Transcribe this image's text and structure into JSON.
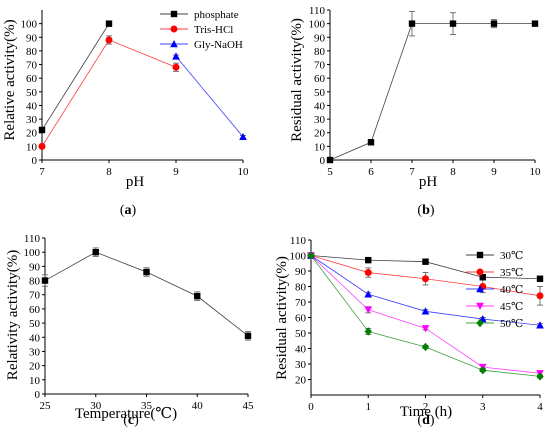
{
  "chart_data": [
    {
      "id": "a",
      "type": "line",
      "panel_label": "(a)",
      "xlabel": "pH",
      "ylabel": "Relative activity(%)",
      "xlim": [
        7,
        10
      ],
      "ylim": [
        0,
        110
      ],
      "xticks": [
        7,
        8,
        9,
        10
      ],
      "yticks": [
        0,
        10,
        20,
        30,
        40,
        50,
        60,
        70,
        80,
        90,
        100
      ],
      "legend_position": "top-right",
      "series": [
        {
          "name": "phosphate",
          "color": "#000000",
          "marker": "square",
          "points": [
            {
              "x": 7,
              "y": 22,
              "err": 2
            },
            {
              "x": 8,
              "y": 100,
              "err": 2
            }
          ]
        },
        {
          "name": "Tris-HCl",
          "color": "#ff0000",
          "marker": "circle",
          "points": [
            {
              "x": 7,
              "y": 10,
              "err": 1
            },
            {
              "x": 8,
              "y": 88,
              "err": 3
            },
            {
              "x": 9,
              "y": 68,
              "err": 3
            }
          ]
        },
        {
          "name": "Gly-NaOH",
          "color": "#0000ff",
          "marker": "triangle",
          "points": [
            {
              "x": 9,
              "y": 76,
              "err": 1
            },
            {
              "x": 10,
              "y": 17,
              "err": 1
            }
          ]
        }
      ]
    },
    {
      "id": "b",
      "type": "line",
      "panel_label": "(b)",
      "xlabel": "pH",
      "ylabel": "Residual activity(%)",
      "xlim": [
        5,
        10
      ],
      "ylim": [
        0,
        110
      ],
      "xticks": [
        5,
        6,
        7,
        8,
        9,
        10
      ],
      "yticks": [
        0,
        10,
        20,
        30,
        40,
        50,
        60,
        70,
        80,
        90,
        100,
        110
      ],
      "series": [
        {
          "name": "",
          "color": "#000000",
          "marker": "square",
          "points": [
            {
              "x": 5,
              "y": 0,
              "err": 0
            },
            {
              "x": 6,
              "y": 13,
              "err": 2
            },
            {
              "x": 7,
              "y": 100,
              "err": 9
            },
            {
              "x": 8,
              "y": 100,
              "err": 8
            },
            {
              "x": 9,
              "y": 100,
              "err": 3
            },
            {
              "x": 10,
              "y": 100,
              "err": 1
            }
          ]
        }
      ]
    },
    {
      "id": "c",
      "type": "line",
      "panel_label": "(c)",
      "xlabel": "Temperature(℃)",
      "ylabel": "Relativity activity(%)",
      "xlim": [
        25,
        45
      ],
      "ylim": [
        0,
        110
      ],
      "xticks": [
        25,
        30,
        35,
        40,
        45
      ],
      "yticks": [
        0,
        10,
        20,
        30,
        40,
        50,
        60,
        70,
        80,
        90,
        100,
        110
      ],
      "series": [
        {
          "name": "",
          "color": "#000000",
          "marker": "square",
          "points": [
            {
              "x": 25,
              "y": 80,
              "err": 4
            },
            {
              "x": 30,
              "y": 100,
              "err": 3
            },
            {
              "x": 35,
              "y": 86,
              "err": 3
            },
            {
              "x": 40,
              "y": 69,
              "err": 3
            },
            {
              "x": 45,
              "y": 41,
              "err": 3
            }
          ]
        }
      ]
    },
    {
      "id": "d",
      "type": "line",
      "panel_label": "(d)",
      "xlabel": "Time (h)",
      "ylabel": "Residual activity(%)",
      "xlim": [
        0,
        4
      ],
      "ylim": [
        10,
        110
      ],
      "xticks": [
        0,
        1,
        2,
        3,
        4
      ],
      "yticks": [
        20,
        30,
        40,
        50,
        60,
        70,
        80,
        90,
        100,
        110
      ],
      "legend_position": "top-right",
      "series": [
        {
          "name": "30℃",
          "color": "#000000",
          "marker": "square",
          "points": [
            {
              "x": 0,
              "y": 100,
              "err": 0
            },
            {
              "x": 1,
              "y": 97,
              "err": 1
            },
            {
              "x": 2,
              "y": 96,
              "err": 1
            },
            {
              "x": 3,
              "y": 86,
              "err": 1
            },
            {
              "x": 4,
              "y": 85,
              "err": 1
            }
          ]
        },
        {
          "name": "35℃",
          "color": "#ff0000",
          "marker": "circle",
          "points": [
            {
              "x": 0,
              "y": 100,
              "err": 0
            },
            {
              "x": 1,
              "y": 89,
              "err": 3
            },
            {
              "x": 2,
              "y": 85,
              "err": 4
            },
            {
              "x": 3,
              "y": 80,
              "err": 4
            },
            {
              "x": 4,
              "y": 74,
              "err": 6
            }
          ]
        },
        {
          "name": "40℃",
          "color": "#0000ff",
          "marker": "triangle",
          "points": [
            {
              "x": 0,
              "y": 100,
              "err": 0
            },
            {
              "x": 1,
              "y": 75,
              "err": 1
            },
            {
              "x": 2,
              "y": 64,
              "err": 1
            },
            {
              "x": 3,
              "y": 59,
              "err": 1
            },
            {
              "x": 4,
              "y": 55,
              "err": 1
            }
          ]
        },
        {
          "name": "45℃",
          "color": "#ff00ff",
          "marker": "triangle-down",
          "points": [
            {
              "x": 0,
              "y": 100,
              "err": 0
            },
            {
              "x": 1,
              "y": 65,
              "err": 2
            },
            {
              "x": 2,
              "y": 53,
              "err": 1
            },
            {
              "x": 3,
              "y": 28,
              "err": 1
            },
            {
              "x": 4,
              "y": 24,
              "err": 1
            }
          ]
        },
        {
          "name": "50℃",
          "color": "#008000",
          "marker": "diamond",
          "points": [
            {
              "x": 0,
              "y": 100,
              "err": 0
            },
            {
              "x": 1,
              "y": 51,
              "err": 2
            },
            {
              "x": 2,
              "y": 41,
              "err": 1
            },
            {
              "x": 3,
              "y": 26,
              "err": 1
            },
            {
              "x": 4,
              "y": 22,
              "err": 1
            }
          ]
        }
      ]
    }
  ]
}
